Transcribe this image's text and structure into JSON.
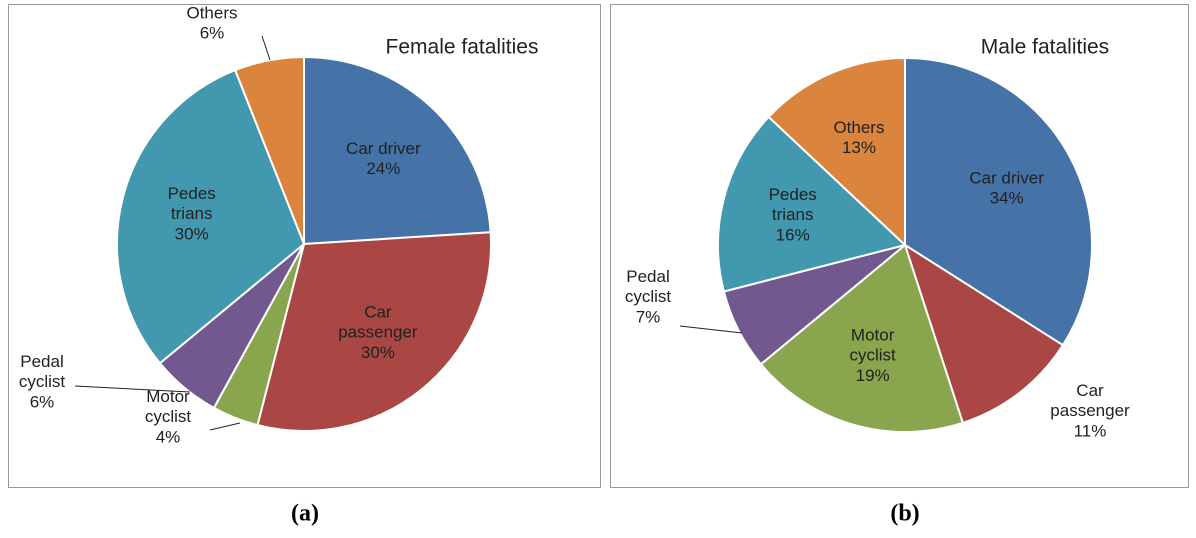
{
  "chart_data": [
    {
      "type": "pie",
      "title": "Female fatalities",
      "caption": "(a)",
      "categories": [
        "Car driver",
        "Car\npassenger",
        "Motor\ncyclist",
        "Pedal\ncyclist",
        "Pedes\ntrians",
        "Others"
      ],
      "values": [
        24,
        30,
        4,
        6,
        30,
        6
      ],
      "value_labels": [
        "24%",
        "30%",
        "4%",
        "6%",
        "30%",
        "6%"
      ],
      "colors": [
        "#4572a7",
        "#aa4643",
        "#89a54e",
        "#71588f",
        "#4198af",
        "#db843d"
      ]
    },
    {
      "type": "pie",
      "title": "Male fatalities",
      "caption": "(b)",
      "categories": [
        "Car driver",
        "Car\npassenger",
        "Motor\ncyclist",
        "Pedal\ncyclist",
        "Pedes\ntrians",
        "Others"
      ],
      "values": [
        34,
        11,
        19,
        7,
        16,
        13
      ],
      "value_labels": [
        "34%",
        "11%",
        "19%",
        "7%",
        "16%",
        "13%"
      ],
      "colors": [
        "#4572a7",
        "#aa4643",
        "#89a54e",
        "#71588f",
        "#4198af",
        "#db843d"
      ]
    }
  ]
}
